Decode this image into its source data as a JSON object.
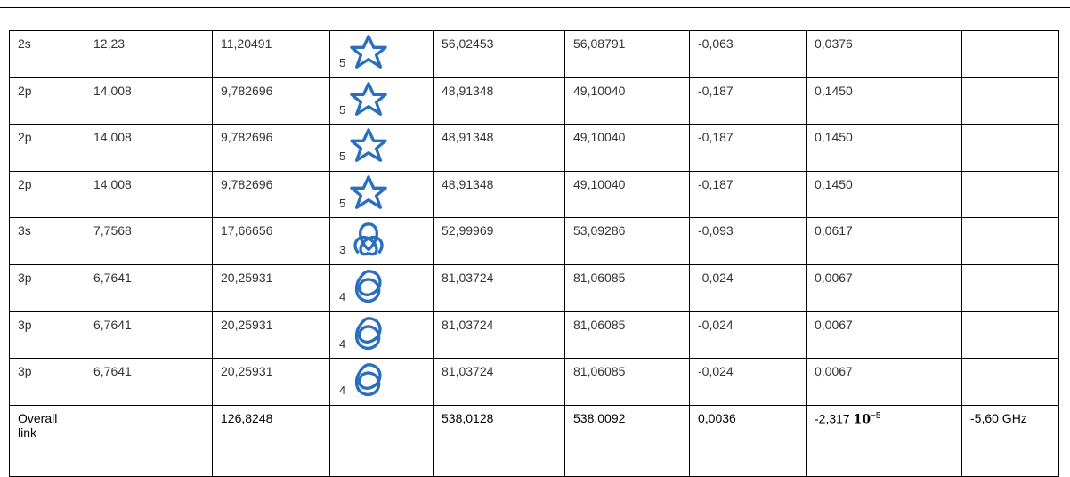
{
  "table": {
    "rows": [
      [
        "2s",
        "12,23",
        "11,20491",
        "5",
        "56,02453",
        "56,08791",
        "-0,063",
        "0,0376"
      ],
      [
        "2p",
        "14,008",
        "9,782696",
        "5",
        "48,91348",
        "49,10040",
        "-0,187",
        "0,1450"
      ],
      [
        "2p",
        "14,008",
        "9,782696",
        "5",
        "48,91348",
        "49,10040",
        "-0,187",
        "0,1450"
      ],
      [
        "2p",
        "14,008",
        "9,782696",
        "5",
        "48,91348",
        "49,10040",
        "-0,187",
        "0,1450"
      ],
      [
        "3s",
        "7,7568",
        "17,66656",
        "3",
        "52,99969",
        "53,09286",
        "-0,093",
        "0,0617"
      ],
      [
        "3p",
        "6,7641",
        "20,25931",
        "4",
        "81,03724",
        "81,06085",
        "-0,024",
        "0,0067"
      ],
      [
        "3p",
        "6,7641",
        "20,25931",
        "4",
        "81,03724",
        "81,06085",
        "-0,024",
        "0,0067"
      ],
      [
        "3p",
        "6,7641",
        "20,25931",
        "4",
        "81,03724",
        "81,06085",
        "-0,024",
        "0,0067"
      ]
    ],
    "overall": {
      "label": "Overall link",
      "energy": "126,8248",
      "col4": "538,0128",
      "col5": "538,0092",
      "col6": "0,0036",
      "col7": {
        "mantissa": "-2,317",
        "base": "10",
        "exponent": "−5"
      },
      "col8": "-5,60 GHz"
    }
  }
}
